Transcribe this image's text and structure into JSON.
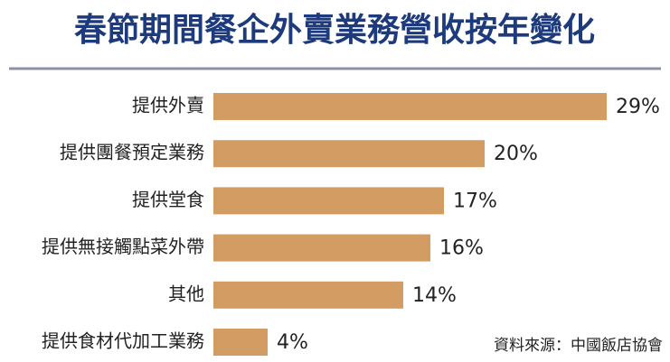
{
  "chart_data": {
    "type": "bar",
    "orientation": "horizontal",
    "title": "春節期間餐企外賣業務營收按年變化",
    "categories": [
      "提供外賣",
      "提供團餐預定業務",
      "提供堂食",
      "提供無接觸點菜外帶",
      "其他",
      "提供食材代加工業務"
    ],
    "values": [
      29,
      20,
      17,
      16,
      14,
      4
    ],
    "value_labels": [
      "29%",
      "20%",
      "17%",
      "16%",
      "14%",
      "4%"
    ],
    "color": "#d29c63",
    "source": "資料來源：中國飯店協會"
  }
}
